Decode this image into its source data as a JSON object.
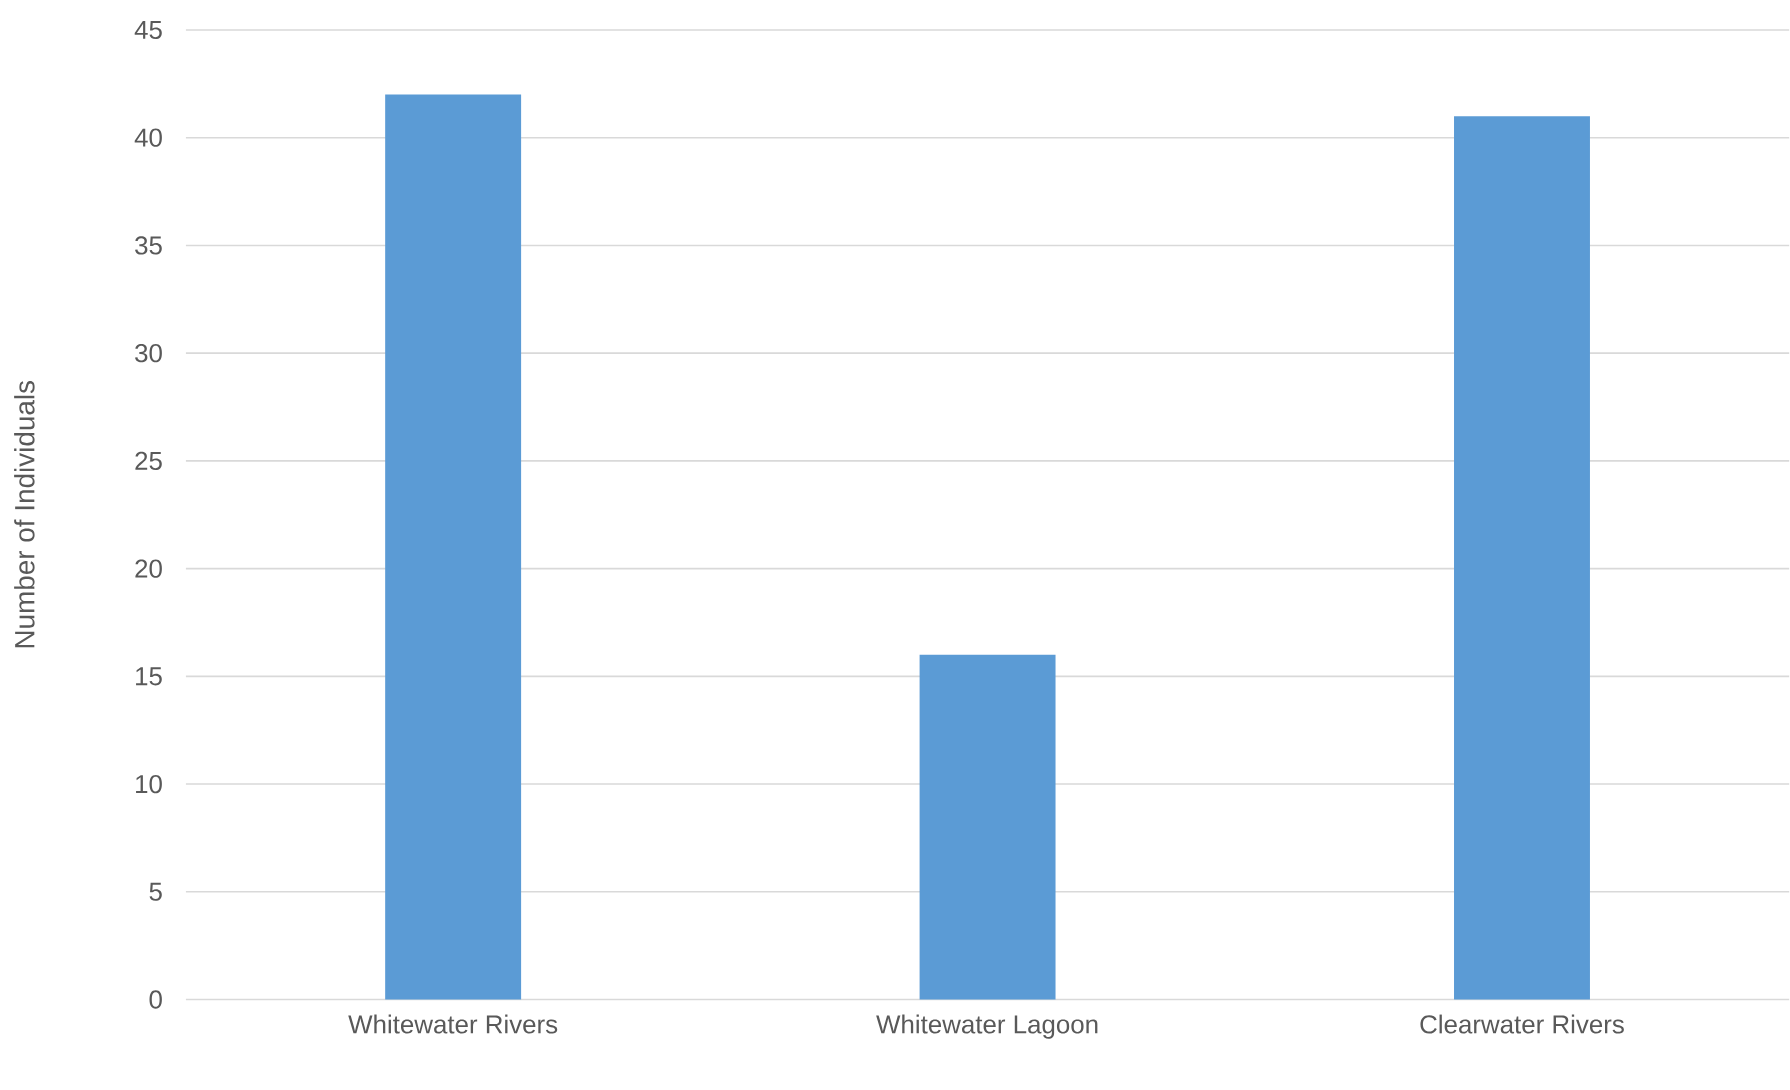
{
  "chart_data": {
    "type": "bar",
    "ylabel": "Number of Individuals",
    "categories": [
      "Whitewater Rivers",
      "Whitewater Lagoon",
      "Clearwater Rivers"
    ],
    "values": [
      42,
      16,
      41
    ],
    "color": "#5b9bd5",
    "ylim": [
      0,
      45
    ],
    "yticks": [
      0,
      5,
      10,
      15,
      20,
      25,
      30,
      35,
      40,
      45
    ],
    "grid": "y"
  }
}
